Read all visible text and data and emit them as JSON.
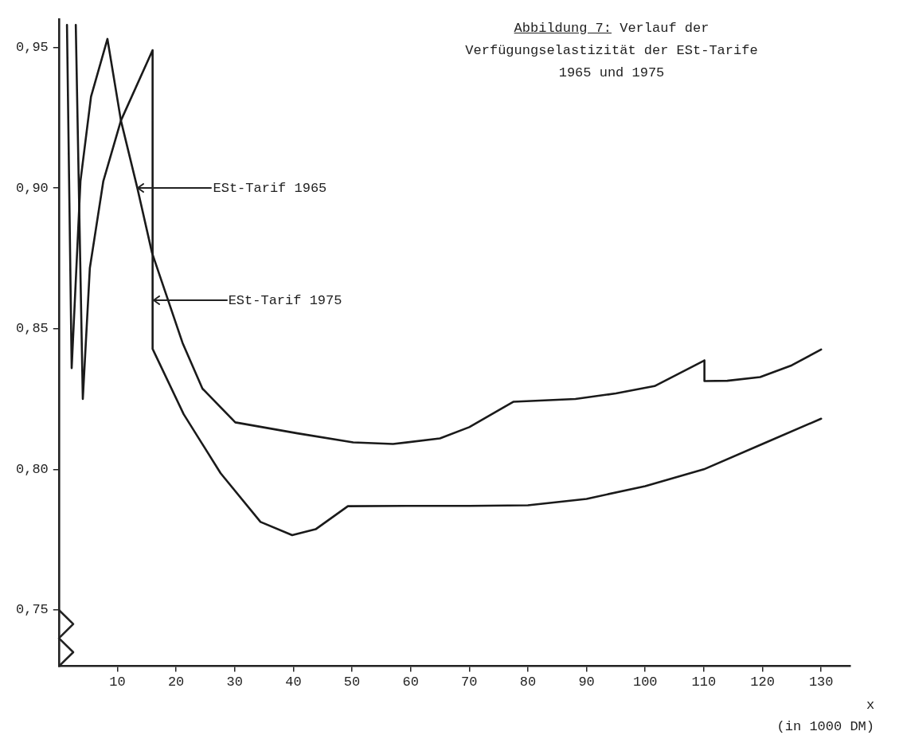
{
  "chart_data": {
    "type": "line",
    "title": "Abbildung 7: Verlauf der Verfügungselastizität der ESt-Tarife 1965 und 1975",
    "xlabel": "x",
    "annotations": [
      {
        "text": "ESt-Tarif 1965",
        "x": 13.4,
        "y": 0.9
      },
      {
        "text": "ESt-Tarif 1975",
        "x": 16.0,
        "y": 0.86
      },
      "(in 1000 DM)"
    ],
    "series": [
      {
        "color": "#1a1a1a",
        "x": [
          1.4,
          2.2,
          3.7,
          5.5,
          8.3,
          10.6,
          13.4,
          15.9,
          21.1,
          24.5,
          30.1,
          40.7,
          50.2,
          57,
          65,
          70,
          77.5,
          88.1,
          95,
          101.6,
          110.1,
          110.1,
          114,
          119.6,
          125,
          130
        ],
        "values": [
          0.958,
          0.836,
          0.9025,
          0.9325,
          0.953,
          0.924,
          0.9,
          0.877,
          0.845,
          0.8287,
          0.8167,
          0.8128,
          0.8096,
          0.809,
          0.811,
          0.815,
          0.824,
          0.825,
          0.827,
          0.8296,
          0.8387,
          0.8314,
          0.8315,
          0.8328,
          0.837,
          0.8426
        ]
      },
      {
        "color": "#1a1a1a",
        "x": [
          2.9,
          4.1,
          5.3,
          7.6,
          10.6,
          16.0,
          16.0,
          21.3,
          27.6,
          34.4,
          39.8,
          43.8,
          49.3,
          60,
          70,
          80,
          90,
          100,
          110,
          120,
          130
        ],
        "values": [
          0.958,
          0.825,
          0.8716,
          0.9025,
          0.924,
          0.949,
          0.8428,
          0.8196,
          0.7986,
          0.7813,
          0.7766,
          0.7787,
          0.7869,
          0.787,
          0.787,
          0.7872,
          0.7895,
          0.794,
          0.8,
          0.809,
          0.818
        ]
      }
    ],
    "xlim": [
      0,
      135
    ],
    "xticks": [
      10,
      20,
      30,
      40,
      50,
      60,
      70,
      80,
      90,
      100,
      110,
      120,
      130
    ],
    "ylim": [
      0.73,
      0.96
    ],
    "yticks": [
      {
        "value": 0.75,
        "label": "0,75"
      },
      {
        "value": 0.8,
        "label": "0,80"
      },
      {
        "value": 0.85,
        "label": "0,85"
      },
      {
        "value": 0.9,
        "label": "0,90"
      },
      {
        "value": 0.95,
        "label": "0,95"
      }
    ],
    "grid": false,
    "legend": false,
    "marker": "none",
    "line_style": "solid"
  }
}
